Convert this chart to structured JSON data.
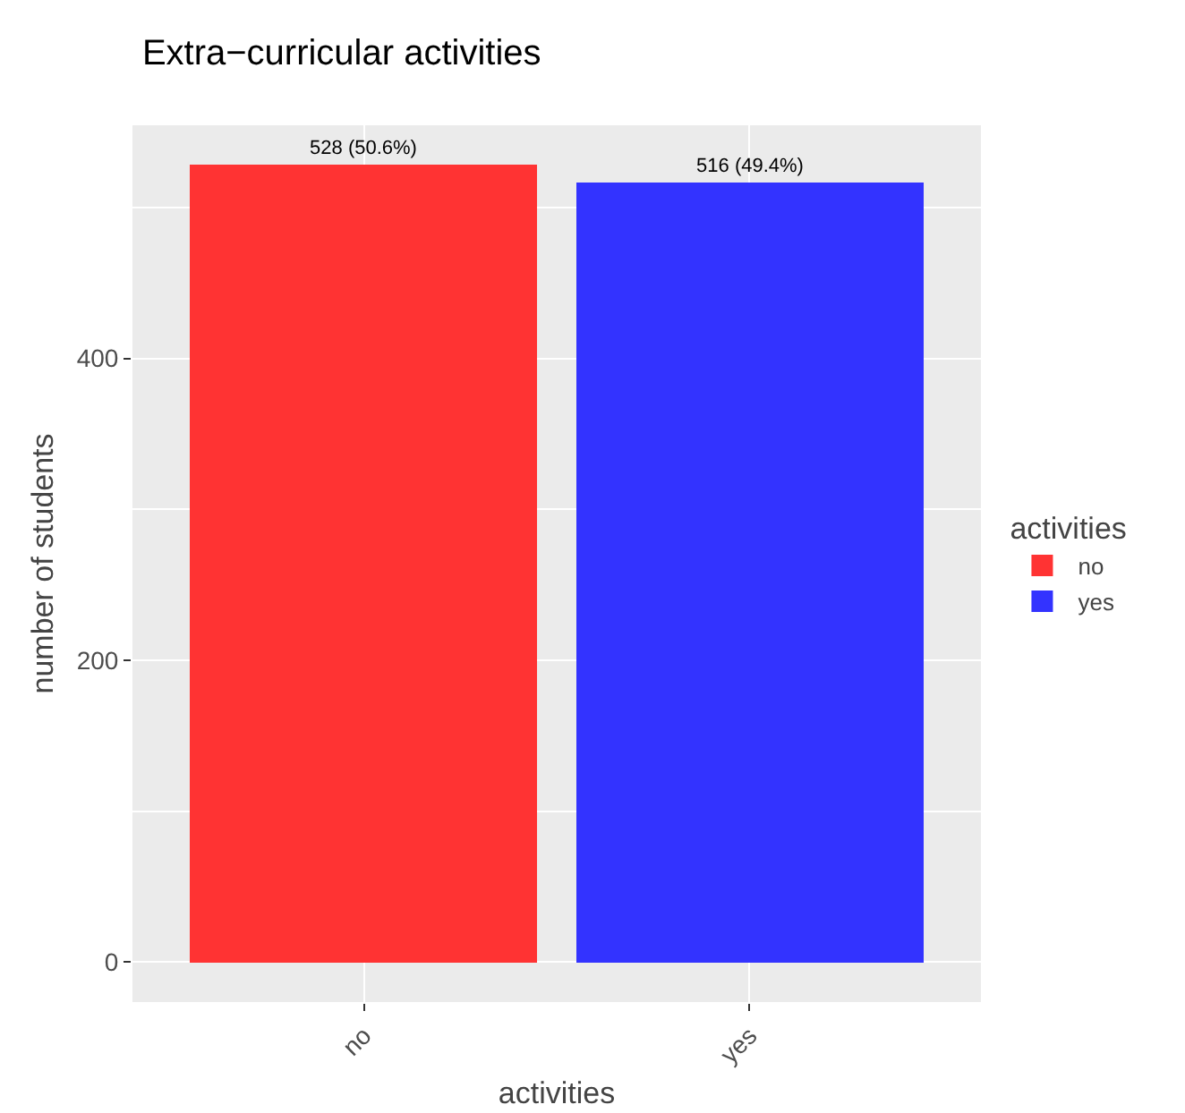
{
  "chart_data": {
    "type": "bar",
    "title": "Extra−curricular activities",
    "xlabel": "activities",
    "ylabel": "number of students",
    "legend_title": "activities",
    "categories": [
      "no",
      "yes"
    ],
    "series": [
      {
        "name": "no",
        "color": "#ff3333",
        "values": [
          528,
          null
        ],
        "value_labels": [
          "528 (50.6%)",
          null
        ]
      },
      {
        "name": "yes",
        "color": "#3333ff",
        "values": [
          null,
          516
        ],
        "value_labels": [
          null,
          "516 (49.4%)"
        ]
      }
    ],
    "ylim": [
      -26.4,
      554.4
    ],
    "yticks": [
      0,
      200,
      400
    ],
    "grid": true,
    "legend": "right"
  }
}
